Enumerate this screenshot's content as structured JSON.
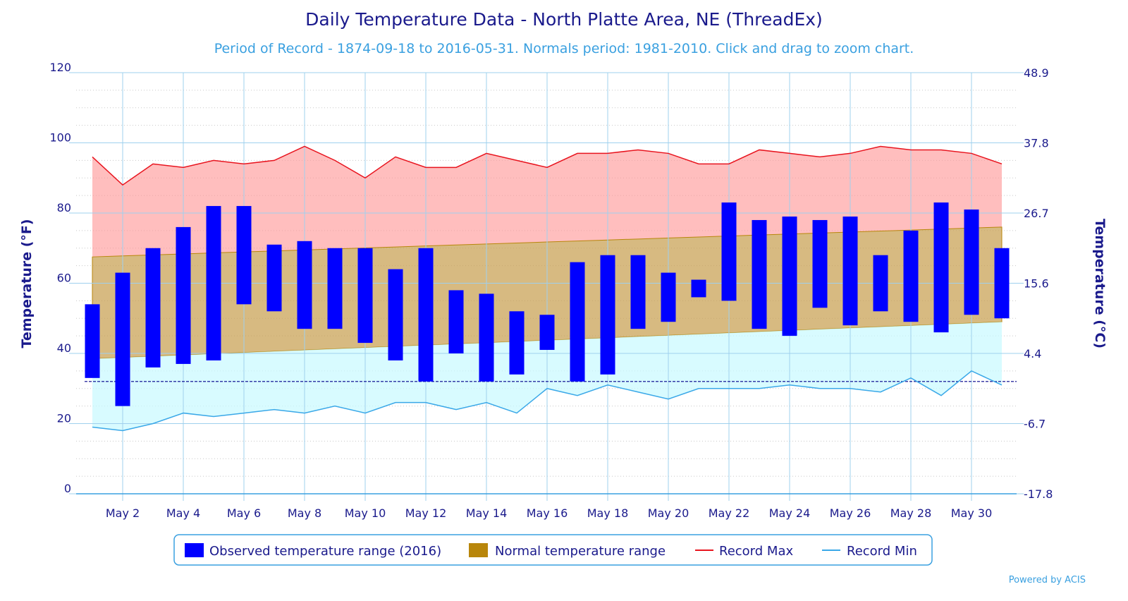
{
  "chart_data": {
    "type": "bar",
    "title": "Daily Temperature Data - North Platte Area, NE (ThreadEx)",
    "subtitle": "Period of Record - 1874-09-18 to 2016-05-31. Normals period: 1981-2010. Click and drag to zoom chart.",
    "ylabel": "Temperature (°F)",
    "ylabel_right": "Temperature (°C)",
    "ylim": [
      0,
      120
    ],
    "yticks": [
      0,
      20,
      40,
      60,
      80,
      100,
      120
    ],
    "yticks_right": [
      "-17.8",
      "-6.7",
      "4.4",
      "15.6",
      "26.7",
      "37.8",
      "48.9"
    ],
    "x_tick_labels": [
      "May 2",
      "May 4",
      "May 6",
      "May 8",
      "May 10",
      "May 12",
      "May 14",
      "May 16",
      "May 18",
      "May 20",
      "May 22",
      "May 24",
      "May 26",
      "May 28",
      "May 30"
    ],
    "x_tick_days": [
      2,
      4,
      6,
      8,
      10,
      12,
      14,
      16,
      18,
      20,
      22,
      24,
      26,
      28,
      30
    ],
    "days": [
      1,
      2,
      3,
      4,
      5,
      6,
      7,
      8,
      9,
      10,
      11,
      12,
      13,
      14,
      15,
      16,
      17,
      18,
      19,
      20,
      21,
      22,
      23,
      24,
      25,
      26,
      27,
      28,
      29,
      30,
      31
    ],
    "freezing_line": 32,
    "grid": true,
    "legend_position": "bottom",
    "series": [
      {
        "name": "Observed temperature range (2016)",
        "color": "#0000ff",
        "low": [
          33,
          25,
          36,
          37,
          38,
          54,
          52,
          47,
          47,
          43,
          38,
          32,
          40,
          32,
          34,
          41,
          32,
          34,
          47,
          49,
          56,
          55,
          47,
          45,
          53,
          48,
          52,
          49,
          46,
          51,
          50
        ],
        "high": [
          54,
          63,
          70,
          76,
          82,
          82,
          71,
          72,
          70,
          70,
          64,
          70,
          58,
          57,
          52,
          51,
          66,
          68,
          68,
          63,
          61,
          83,
          78,
          79,
          78,
          79,
          68,
          75,
          83,
          81,
          70
        ]
      },
      {
        "name": "Normal temperature range",
        "color": "#b8860b",
        "low_start": 38.5,
        "low_end": 49,
        "high_start": 67.5,
        "high_end": 76
      },
      {
        "name": "Record Max",
        "color": "#e8141e",
        "values": [
          96,
          88,
          94,
          93,
          95,
          94,
          95,
          99,
          95,
          90,
          96,
          93,
          93,
          97,
          95,
          93,
          97,
          97,
          98,
          97,
          94,
          94,
          98,
          97,
          96,
          97,
          99,
          98,
          98,
          97,
          94
        ]
      },
      {
        "name": "Record Min",
        "color": "#3aa8e8",
        "values": [
          19,
          18,
          20,
          23,
          22,
          23,
          24,
          23,
          25,
          23,
          26,
          26,
          24,
          26,
          23,
          30,
          28,
          31,
          29,
          27,
          30,
          30,
          30,
          31,
          30,
          30,
          29,
          33,
          28,
          35,
          31
        ]
      }
    ]
  },
  "legend": {
    "observed": "Observed temperature range (2016)",
    "normal": "Normal temperature range",
    "record_max": "Record Max",
    "record_min": "Record Min"
  },
  "credit": "Powered by ACIS"
}
